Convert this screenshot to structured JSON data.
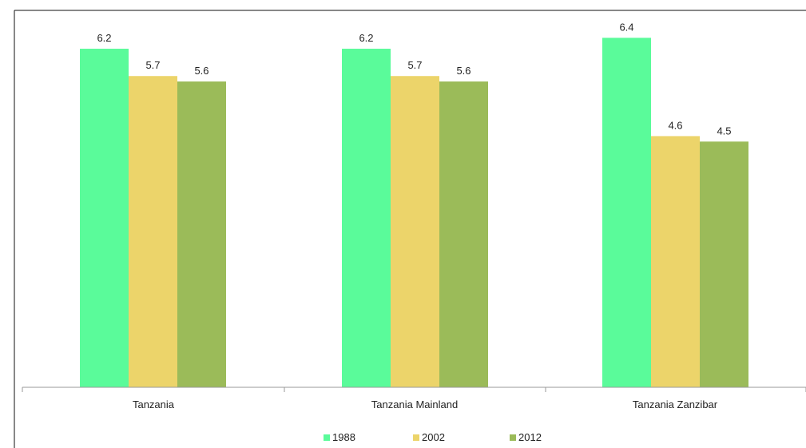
{
  "chart_data": {
    "type": "bar",
    "categories": [
      "Tanzania",
      "Tanzania Mainland",
      "Tanzania Zanzibar"
    ],
    "series": [
      {
        "name": "1988",
        "values": [
          6.2,
          6.2,
          6.4
        ],
        "color": "#5afb9a"
      },
      {
        "name": "2002",
        "values": [
          5.7,
          5.7,
          4.6
        ],
        "color": "#ecd46a"
      },
      {
        "name": "2012",
        "values": [
          5.6,
          5.6,
          4.5
        ],
        "color": "#9bbb59"
      }
    ],
    "data_labels": [
      [
        "6.2",
        "6.2",
        "6.4"
      ],
      [
        "5.7",
        "5.7",
        "4.6"
      ],
      [
        "5.6",
        "5.6",
        "4.5"
      ]
    ],
    "ylim": [
      0,
      6.8
    ],
    "grid": false,
    "legend_position": "bottom",
    "title": "",
    "xlabel": "",
    "ylabel": ""
  }
}
